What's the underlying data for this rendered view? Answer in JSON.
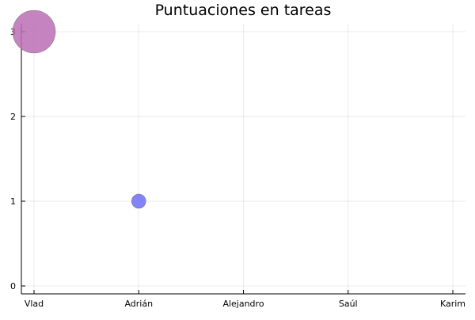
{
  "chart_data": {
    "type": "scatter",
    "title": "Puntuaciones en tareas",
    "xlabel": "",
    "ylabel": "",
    "categories": [
      "Vlad",
      "Adrián",
      "Alejandro",
      "Saúl",
      "Karim"
    ],
    "points": [
      {
        "x": "Vlad",
        "y": 3,
        "size": 3,
        "color": "#bb6fb4"
      },
      {
        "x": "Adrián",
        "y": 1,
        "size": 1,
        "color": "#6d6ff5"
      }
    ],
    "yticks": [
      "0",
      "1",
      "2",
      "3"
    ],
    "ylim": [
      0,
      3
    ],
    "grid": true,
    "legend": "none"
  }
}
